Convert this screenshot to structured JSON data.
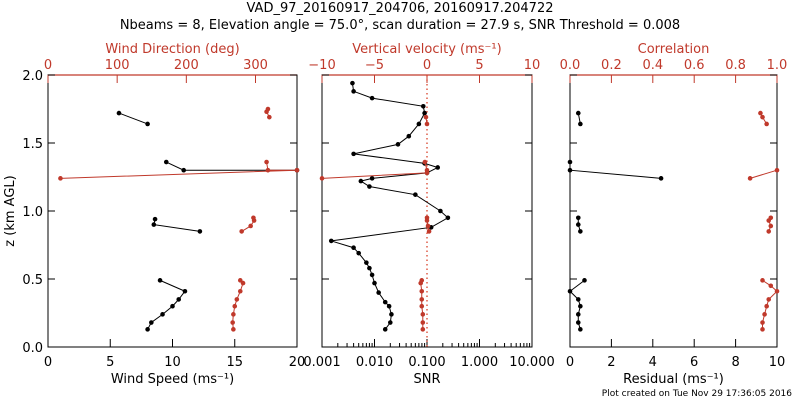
{
  "header": {
    "title": "VAD_97_20160917_204706, 20160917.204722",
    "subtitle": "Nbeams = 8, Elevation angle = 75.0°, scan duration = 27.9 s, SNR Threshold = 0.008"
  },
  "footer": "Plot created on Tue Nov 29 17:36:05 2016",
  "colors": {
    "primary": "#000000",
    "secondary": "#c0392b",
    "reference_line": "#d9432b"
  },
  "y_axis": {
    "label": "z (km AGL)",
    "ylim": [
      0.0,
      2.0
    ],
    "ticks": [
      "0.0",
      "0.5",
      "1.0",
      "1.5",
      "2.0"
    ]
  },
  "chart_data": [
    {
      "type": "line",
      "panel": "wind",
      "xlabel": "Wind Speed (ms⁻¹)",
      "x2label": "Wind Direction (deg)",
      "xlim": [
        0,
        20
      ],
      "x2lim": [
        0,
        360
      ],
      "xticks": [
        "0",
        "5",
        "10",
        "15",
        "20"
      ],
      "x2ticks": [
        "0",
        "100",
        "200",
        "300"
      ],
      "series": [
        {
          "axis": "bottom",
          "points": [
            [
              8.0,
              0.13
            ],
            [
              8.3,
              0.18
            ],
            [
              9.2,
              0.24
            ],
            [
              10.0,
              0.3
            ],
            [
              10.5,
              0.35
            ],
            [
              11.0,
              0.41
            ],
            [
              9.0,
              0.49
            ],
            "break",
            [
              12.2,
              0.85
            ],
            [
              8.5,
              0.9
            ],
            [
              8.6,
              0.94
            ],
            "break",
            [
              20.0,
              1.3
            ],
            [
              10.9,
              1.3
            ],
            [
              9.5,
              1.36
            ],
            "break",
            [
              8.0,
              1.64
            ],
            [
              5.7,
              1.72
            ]
          ]
        },
        {
          "axis": "top",
          "points": [
            [
              268,
              0.13
            ],
            [
              267,
              0.18
            ],
            [
              268,
              0.24
            ],
            [
              270,
              0.3
            ],
            [
              273,
              0.35
            ],
            [
              278,
              0.41
            ],
            [
              282,
              0.47
            ],
            [
              278,
              0.49
            ],
            "break",
            [
              280,
              0.85
            ],
            [
              293,
              0.89
            ],
            [
              298,
              0.93
            ],
            [
              297,
              0.95
            ],
            "break",
            [
              18,
              1.24
            ],
            [
              360,
              1.3
            ],
            [
              318,
              1.3
            ],
            [
              316,
              1.36
            ],
            "break",
            [
              320,
              1.69
            ],
            [
              316,
              1.73
            ],
            [
              318,
              1.75
            ]
          ]
        }
      ]
    },
    {
      "type": "line",
      "panel": "snr",
      "xlabel": "SNR",
      "x2label": "Vertical velocity (ms⁻¹)",
      "xscale": "log",
      "xlim": [
        0.001,
        10
      ],
      "x2lim": [
        -10,
        10
      ],
      "xticks": [
        "0.001",
        "0.010",
        "0.100",
        "1.000",
        "10.000"
      ],
      "x2ticks": [
        "−10",
        "−5",
        "0",
        "5",
        "10"
      ],
      "reference_x2": 0,
      "series": [
        {
          "axis": "bottom",
          "points": [
            [
              0.016,
              0.13
            ],
            [
              0.02,
              0.18
            ],
            [
              0.021,
              0.24
            ],
            [
              0.019,
              0.3
            ],
            [
              0.016,
              0.33
            ],
            [
              0.012,
              0.4
            ],
            [
              0.01,
              0.47
            ],
            [
              0.009,
              0.53
            ],
            [
              0.008,
              0.58
            ],
            [
              0.007,
              0.62
            ],
            [
              0.005,
              0.69
            ],
            [
              0.004,
              0.73
            ],
            [
              0.0015,
              0.78
            ],
            [
              0.12,
              0.88
            ],
            [
              0.25,
              0.95
            ],
            [
              0.18,
              1.0
            ],
            [
              0.06,
              1.12
            ],
            [
              0.008,
              1.18
            ],
            [
              0.0055,
              1.22
            ],
            [
              0.009,
              1.24
            ],
            [
              0.1,
              1.28
            ],
            [
              0.16,
              1.32
            ],
            [
              0.09,
              1.35
            ],
            [
              0.004,
              1.42
            ],
            [
              0.028,
              1.49
            ],
            [
              0.045,
              1.55
            ],
            [
              0.07,
              1.64
            ],
            [
              0.09,
              1.72
            ],
            [
              0.085,
              1.77
            ],
            [
              0.009,
              1.83
            ],
            [
              0.004,
              1.88
            ],
            [
              0.0038,
              1.94
            ]
          ]
        },
        {
          "axis": "top",
          "points": [
            [
              -0.4,
              0.13
            ],
            [
              -0.4,
              0.18
            ],
            [
              -0.4,
              0.24
            ],
            [
              -0.5,
              0.3
            ],
            [
              -0.5,
              0.35
            ],
            [
              -0.5,
              0.41
            ],
            [
              -0.6,
              0.47
            ],
            [
              -0.5,
              0.49
            ],
            "break",
            [
              0.2,
              0.85
            ],
            [
              0.1,
              0.89
            ],
            [
              0.0,
              0.93
            ],
            [
              0.0,
              0.95
            ],
            "break",
            [
              -10.0,
              1.24
            ],
            [
              0.0,
              1.28
            ],
            [
              0.0,
              1.3
            ],
            [
              -0.2,
              1.36
            ],
            "break",
            [
              0.0,
              1.64
            ],
            [
              -0.1,
              1.69
            ]
          ]
        }
      ]
    },
    {
      "type": "line",
      "panel": "residual",
      "xlabel": "Residual  (ms⁻¹)",
      "x2label": "Correlation",
      "xlim": [
        0,
        10
      ],
      "x2lim": [
        0.0,
        1.0
      ],
      "xticks": [
        "0",
        "2",
        "4",
        "6",
        "8",
        "10"
      ],
      "x2ticks": [
        "0.0",
        "0.2",
        "0.4",
        "0.6",
        "0.8",
        "1.0"
      ],
      "series": [
        {
          "axis": "bottom",
          "points": [
            [
              0.5,
              0.13
            ],
            [
              0.4,
              0.18
            ],
            [
              0.4,
              0.24
            ],
            [
              0.5,
              0.3
            ],
            [
              0.4,
              0.35
            ],
            [
              0.0,
              0.41
            ],
            [
              0.7,
              0.49
            ],
            "break",
            [
              0.5,
              0.85
            ],
            [
              0.4,
              0.9
            ],
            [
              0.4,
              0.95
            ],
            "break",
            [
              4.4,
              1.24
            ],
            [
              0.0,
              1.3
            ],
            [
              0.0,
              1.36
            ],
            "break",
            [
              0.5,
              1.64
            ],
            [
              0.4,
              1.72
            ]
          ]
        },
        {
          "axis": "top",
          "points": [
            [
              0.93,
              0.13
            ],
            [
              0.93,
              0.18
            ],
            [
              0.94,
              0.24
            ],
            [
              0.95,
              0.3
            ],
            [
              0.96,
              0.35
            ],
            [
              1.0,
              0.41
            ],
            [
              0.97,
              0.45
            ],
            [
              0.93,
              0.49
            ],
            "break",
            [
              0.96,
              0.85
            ],
            [
              0.97,
              0.89
            ],
            [
              0.96,
              0.93
            ],
            [
              0.97,
              0.95
            ],
            "break",
            [
              0.87,
              1.24
            ],
            [
              1.0,
              1.3
            ],
            "break",
            [
              0.95,
              1.64
            ],
            [
              0.93,
              1.69
            ],
            [
              0.92,
              1.72
            ]
          ]
        }
      ]
    }
  ]
}
